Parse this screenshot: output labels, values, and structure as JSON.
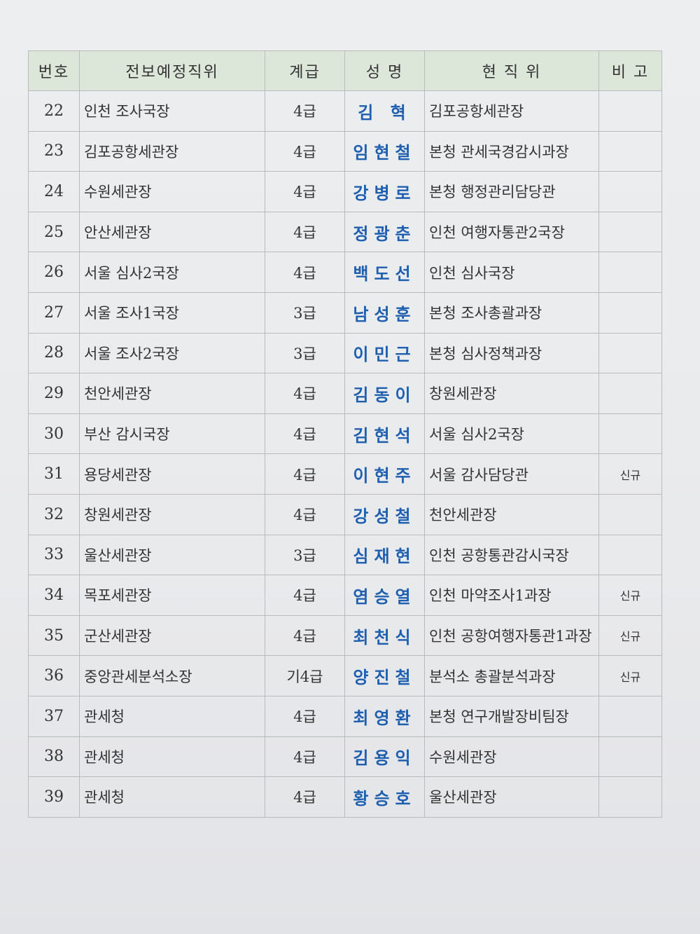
{
  "header": {
    "no": "번호",
    "new_position": "전보예정직위",
    "grade": "계급",
    "name": "성 명",
    "current_position": "현 직 위",
    "note": "비 고"
  },
  "rows": [
    {
      "no": "22",
      "new_position": "인천 조사국장",
      "grade": "4급",
      "name": "김  혁",
      "current_position": "김포공항세관장",
      "note": ""
    },
    {
      "no": "23",
      "new_position": "김포공항세관장",
      "grade": "4급",
      "name": "임현철",
      "current_position": "본청 관세국경감시과장",
      "note": ""
    },
    {
      "no": "24",
      "new_position": "수원세관장",
      "grade": "4급",
      "name": "강병로",
      "current_position": "본청 행정관리담당관",
      "note": ""
    },
    {
      "no": "25",
      "new_position": "안산세관장",
      "grade": "4급",
      "name": "정광춘",
      "current_position": "인천 여행자통관2국장",
      "note": ""
    },
    {
      "no": "26",
      "new_position": "서울 심사2국장",
      "grade": "4급",
      "name": "백도선",
      "current_position": "인천 심사국장",
      "note": ""
    },
    {
      "no": "27",
      "new_position": "서울 조사1국장",
      "grade": "3급",
      "name": "남성훈",
      "current_position": "본청 조사총괄과장",
      "note": ""
    },
    {
      "no": "28",
      "new_position": "서울 조사2국장",
      "grade": "3급",
      "name": "이민근",
      "current_position": "본청 심사정책과장",
      "note": ""
    },
    {
      "no": "29",
      "new_position": "천안세관장",
      "grade": "4급",
      "name": "김동이",
      "current_position": "창원세관장",
      "note": ""
    },
    {
      "no": "30",
      "new_position": "부산 감시국장",
      "grade": "4급",
      "name": "김현석",
      "current_position": "서울 심사2국장",
      "note": ""
    },
    {
      "no": "31",
      "new_position": "용당세관장",
      "grade": "4급",
      "name": "이현주",
      "current_position": "서울 감사담당관",
      "note": "신규"
    },
    {
      "no": "32",
      "new_position": "창원세관장",
      "grade": "4급",
      "name": "강성철",
      "current_position": "천안세관장",
      "note": ""
    },
    {
      "no": "33",
      "new_position": "울산세관장",
      "grade": "3급",
      "name": "심재현",
      "current_position": "인천 공항통관감시국장",
      "note": ""
    },
    {
      "no": "34",
      "new_position": "목포세관장",
      "grade": "4급",
      "name": "염승열",
      "current_position": "인천 마약조사1과장",
      "note": "신규"
    },
    {
      "no": "35",
      "new_position": "군산세관장",
      "grade": "4급",
      "name": "최천식",
      "current_position": "인천 공항여행자통관1과장",
      "note": "신규"
    },
    {
      "no": "36",
      "new_position": "중앙관세분석소장",
      "grade": "기4급",
      "name": "양진철",
      "current_position": "분석소 총괄분석과장",
      "note": "신규"
    },
    {
      "no": "37",
      "new_position": "관세청",
      "grade": "4급",
      "name": "최영환",
      "current_position": "본청 연구개발장비팀장",
      "note": ""
    },
    {
      "no": "38",
      "new_position": "관세청",
      "grade": "4급",
      "name": "김용익",
      "current_position": "수원세관장",
      "note": ""
    },
    {
      "no": "39",
      "new_position": "관세청",
      "grade": "4급",
      "name": "황승호",
      "current_position": "울산세관장",
      "note": ""
    }
  ]
}
